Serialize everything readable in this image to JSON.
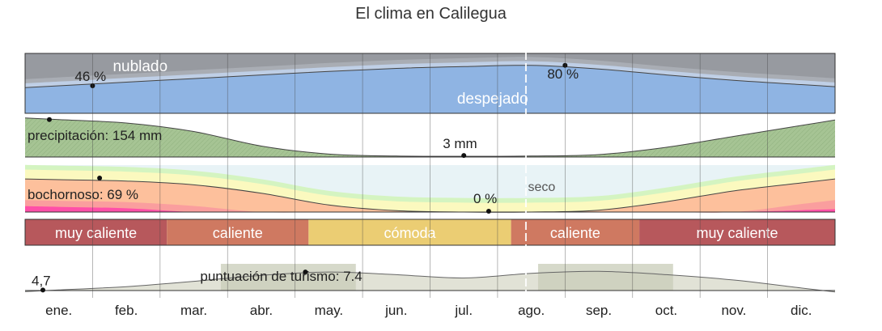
{
  "title": "El clima en Calilegua",
  "months": [
    "ene.",
    "feb.",
    "mar.",
    "abr.",
    "may.",
    "jun.",
    "jul.",
    "ago.",
    "sep.",
    "oct.",
    "nov.",
    "dic."
  ],
  "colors": {
    "sky_blue": "#8fb4e3",
    "sky_light": "#bfcfe6",
    "sky_grey": "#a9adb4",
    "sky_dark": "#979aa0",
    "precip": "#a6c494",
    "dry": "#e8f3f6",
    "comfy": "#d4f4c1",
    "yellow": "#fbf9bf",
    "orange": "#fdc09c",
    "pink": "#fa9e9e",
    "magenta": "#ff4fa8",
    "muy_caliente": "#b7585c",
    "caliente": "#cf7961",
    "comoda": "#ebcd73",
    "tourism_fill": "#e1e2d6",
    "tourism_band": "#c8ccb8",
    "frame": "#333333"
  },
  "chart_data": [
    {
      "type": "area",
      "name": "clouds",
      "x": [
        1,
        2,
        3,
        4,
        5,
        6,
        7,
        8,
        9,
        10,
        11,
        12
      ],
      "series": [
        {
          "name": "despejado",
          "values": [
            46,
            52,
            58,
            64,
            70,
            75,
            78,
            80,
            74,
            64,
            55,
            48
          ]
        }
      ],
      "labels": {
        "top": "nublado",
        "bottom": "despejado"
      },
      "annotations": [
        {
          "x": 1.0,
          "y": 46,
          "text": "46 %"
        },
        {
          "x": 8.0,
          "y": 80,
          "text": "80 %"
        }
      ],
      "ylim": [
        0,
        100
      ]
    },
    {
      "type": "area",
      "name": "precipitation",
      "x": [
        1,
        2,
        3,
        4,
        5,
        6,
        7,
        8,
        9,
        10,
        11,
        12
      ],
      "series": [
        {
          "name": "precipitación",
          "values": [
            154,
            140,
            105,
            45,
            12,
            4,
            3,
            4,
            10,
            40,
            85,
            130
          ]
        }
      ],
      "annotations": [
        {
          "x": 0.6,
          "y": 154,
          "text": "precipitación: 154 mm"
        },
        {
          "x": 6.5,
          "y": 3,
          "text": "3 mm"
        }
      ],
      "ylim": [
        0,
        160
      ]
    },
    {
      "type": "area",
      "name": "humidity",
      "x": [
        1,
        2,
        3,
        4,
        5,
        6,
        7,
        8,
        9,
        10,
        11,
        12
      ],
      "series": [
        {
          "name": "bochornoso",
          "values": [
            69,
            66,
            58,
            40,
            15,
            3,
            0,
            0,
            4,
            22,
            45,
            62
          ]
        }
      ],
      "labels": {
        "dry": "seco"
      },
      "annotations": [
        {
          "x": 1.2,
          "y": 69,
          "text": "bochornoso: 69 %"
        },
        {
          "x": 7.3,
          "y": 0,
          "text": "0 %"
        }
      ],
      "ylim": [
        0,
        100
      ]
    },
    {
      "type": "table",
      "name": "temperature_categories",
      "segments": [
        {
          "label": "muy caliente",
          "from": 0,
          "to": 2.1,
          "color_key": "muy_caliente"
        },
        {
          "label": "caliente",
          "from": 2.1,
          "to": 4.2,
          "color_key": "caliente"
        },
        {
          "label": "cómoda",
          "from": 4.2,
          "to": 7.2,
          "color_key": "comoda"
        },
        {
          "label": "caliente",
          "from": 7.2,
          "to": 9.1,
          "color_key": "caliente"
        },
        {
          "label": "muy caliente",
          "from": 9.1,
          "to": 12,
          "color_key": "muy_caliente"
        }
      ]
    },
    {
      "type": "area",
      "name": "tourism",
      "x": [
        1,
        2,
        3,
        4,
        5,
        6,
        7,
        8,
        9,
        10,
        11,
        12
      ],
      "series": [
        {
          "name": "puntuación de turismo",
          "values": [
            4.7,
            5.2,
            6.0,
            6.9,
            7.4,
            7.0,
            6.5,
            7.2,
            7.5,
            7.0,
            6.2,
            5.0
          ]
        }
      ],
      "annotations": [
        {
          "x": 1.0,
          "y": 4.7,
          "text": "4,7"
        },
        {
          "x": 4.5,
          "y": 7.4,
          "text": "puntuación de turismo: 7.4"
        }
      ],
      "bands": [
        {
          "from": 2.9,
          "to": 4.9
        },
        {
          "from": 7.6,
          "to": 9.6
        }
      ],
      "ylim": [
        0,
        10
      ]
    }
  ]
}
